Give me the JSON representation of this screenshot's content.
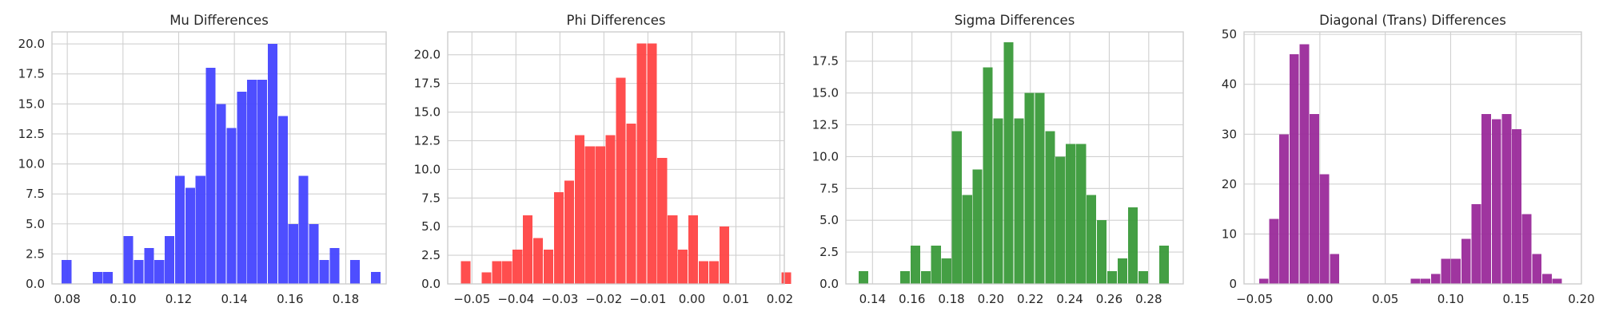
{
  "chart_data": [
    {
      "type": "bar",
      "title": "Mu Differences",
      "color": "#4444ff",
      "xlim": [
        0.0745,
        0.1945
      ],
      "ylim": [
        0,
        21.0
      ],
      "xticks": [
        0.08,
        0.1,
        0.12,
        0.14,
        0.16,
        0.18
      ],
      "xtick_labels": [
        "0.08",
        "0.10",
        "0.12",
        "0.14",
        "0.16",
        "0.18"
      ],
      "yticks": [
        0,
        2.5,
        5,
        7.5,
        10,
        12.5,
        15,
        17.5,
        20
      ],
      "ytick_labels": [
        "0.0",
        "2.5",
        "5.0",
        "7.5",
        "10.0",
        "12.5",
        "15.0",
        "17.5",
        "20.0"
      ],
      "bins": {
        "start": 0.078,
        "width": 0.0037,
        "counts": [
          2,
          0,
          0,
          1,
          1,
          0,
          4,
          2,
          3,
          2,
          4,
          9,
          8,
          9,
          18,
          15,
          13,
          16,
          17,
          17,
          20,
          14,
          5,
          9,
          5,
          2,
          3,
          0,
          2,
          0,
          1
        ]
      }
    },
    {
      "type": "bar",
      "title": "Phi Differences",
      "color": "#ff4444",
      "xlim": [
        -0.0555,
        0.021
      ],
      "ylim": [
        0,
        22.0
      ],
      "xticks": [
        -0.05,
        -0.04,
        -0.03,
        -0.02,
        -0.01,
        0.0,
        0.01,
        0.02
      ],
      "xtick_labels": [
        "−0.05",
        "−0.04",
        "−0.03",
        "−0.02",
        "−0.01",
        "0.00",
        "0.01",
        "0.02"
      ],
      "yticks": [
        0,
        2.5,
        5,
        7.5,
        10,
        12.5,
        15,
        17.5,
        20
      ],
      "ytick_labels": [
        "0.0",
        "2.5",
        "5.0",
        "7.5",
        "10.0",
        "12.5",
        "15.0",
        "17.5",
        "20.0"
      ],
      "bins": {
        "start": -0.0525,
        "width": 0.00235,
        "counts": [
          2,
          0,
          1,
          2,
          2,
          3,
          6,
          4,
          3,
          8,
          9,
          13,
          12,
          12,
          13,
          18,
          14,
          21,
          21,
          11,
          6,
          3,
          6,
          2,
          2,
          5,
          0,
          0,
          0,
          0,
          0,
          1
        ]
      }
    },
    {
      "type": "bar",
      "title": "Sigma Differences",
      "color": "#3a9a3a",
      "xlim": [
        0.1265,
        0.2975
      ],
      "ylim": [
        0,
        19.8
      ],
      "xticks": [
        0.14,
        0.16,
        0.18,
        0.2,
        0.22,
        0.24,
        0.26,
        0.28
      ],
      "xtick_labels": [
        "0.14",
        "0.16",
        "0.18",
        "0.20",
        "0.22",
        "0.24",
        "0.26",
        "0.28"
      ],
      "yticks": [
        0,
        2.5,
        5,
        7.5,
        10,
        12.5,
        15,
        17.5
      ],
      "ytick_labels": [
        "0.0",
        "2.5",
        "5.0",
        "7.5",
        "10.0",
        "12.5",
        "15.0",
        "17.5"
      ],
      "bins": {
        "start": 0.133,
        "width": 0.00525,
        "counts": [
          1,
          0,
          0,
          0,
          1,
          3,
          1,
          3,
          2,
          12,
          7,
          9,
          17,
          13,
          19,
          13,
          15,
          15,
          12,
          10,
          11,
          11,
          7,
          5,
          1,
          2,
          6,
          1,
          0,
          3
        ]
      }
    },
    {
      "type": "bar",
      "title": "Diagonal (Trans) Differences",
      "color": "#9a2a9a",
      "xlim": [
        -0.058,
        0.2
      ],
      "ylim": [
        0,
        50.5
      ],
      "xticks": [
        -0.05,
        0.0,
        0.05,
        0.1,
        0.15,
        0.2
      ],
      "xtick_labels": [
        "−0.05",
        "0.00",
        "0.05",
        "0.10",
        "0.15",
        "0.20"
      ],
      "yticks": [
        0,
        10,
        20,
        30,
        40,
        50
      ],
      "ytick_labels": [
        "0",
        "10",
        "20",
        "30",
        "40",
        "50"
      ],
      "bins": {
        "start": -0.0465,
        "width": 0.007734,
        "counts": [
          1,
          13,
          30,
          46,
          48,
          34,
          22,
          6,
          0,
          0,
          0,
          0,
          0,
          0,
          0,
          1,
          1,
          2,
          5,
          5,
          9,
          16,
          34,
          33,
          34,
          31,
          14,
          6,
          2,
          1
        ]
      }
    }
  ]
}
